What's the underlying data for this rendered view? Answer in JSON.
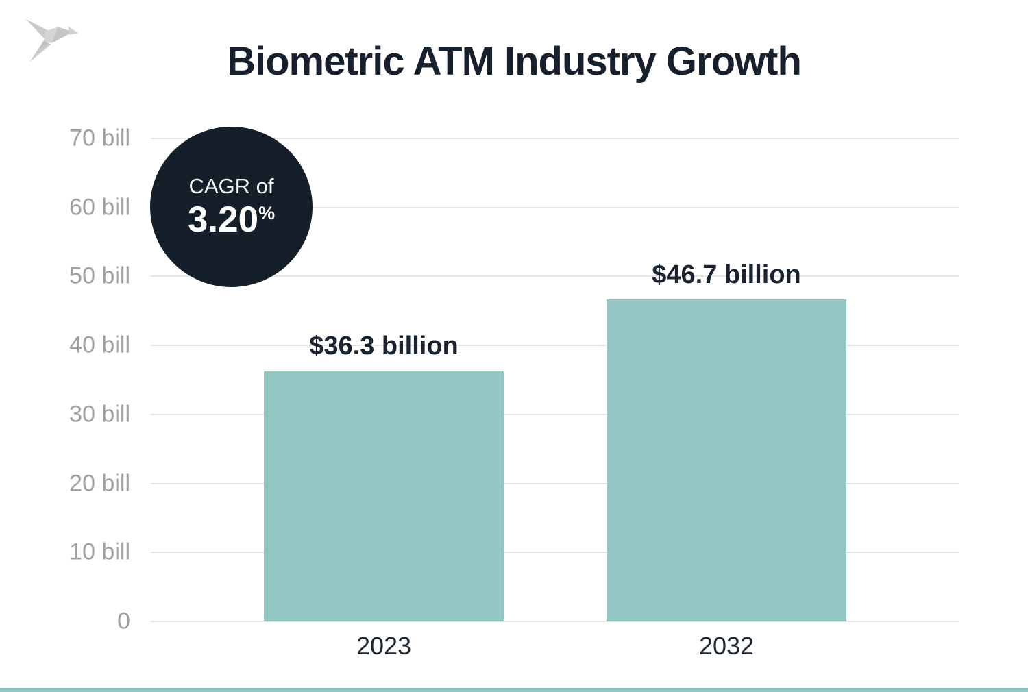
{
  "title": "Biometric ATM Industry Growth",
  "badge": {
    "prefix": "CAGR of",
    "value": "3.20",
    "suffix": "%"
  },
  "colors": {
    "bar": "#93c6c2",
    "badge_bg": "#141f29",
    "gridline": "#e5e5e5",
    "axis_text": "#9da1a4",
    "dark_text": "#16212d",
    "footer_strip": "#93c6c2"
  },
  "chart_data": {
    "type": "bar",
    "title": "Biometric ATM Industry Growth",
    "categories": [
      "2023",
      "2032"
    ],
    "values": [
      36.3,
      46.7
    ],
    "value_labels": [
      "$36.3 billion",
      "$46.7 billion"
    ],
    "unit": "billion USD",
    "annotation": "CAGR of 3.20%",
    "xlabel": "",
    "ylabel": "",
    "ylim": [
      0,
      70
    ],
    "ytick_step": 10,
    "ytick_labels": [
      "0",
      "10 bill",
      "20 bill",
      "30 bill",
      "40 bill",
      "50 bill",
      "60 bill",
      "70 bill"
    ],
    "grid": true,
    "legend": false
  }
}
